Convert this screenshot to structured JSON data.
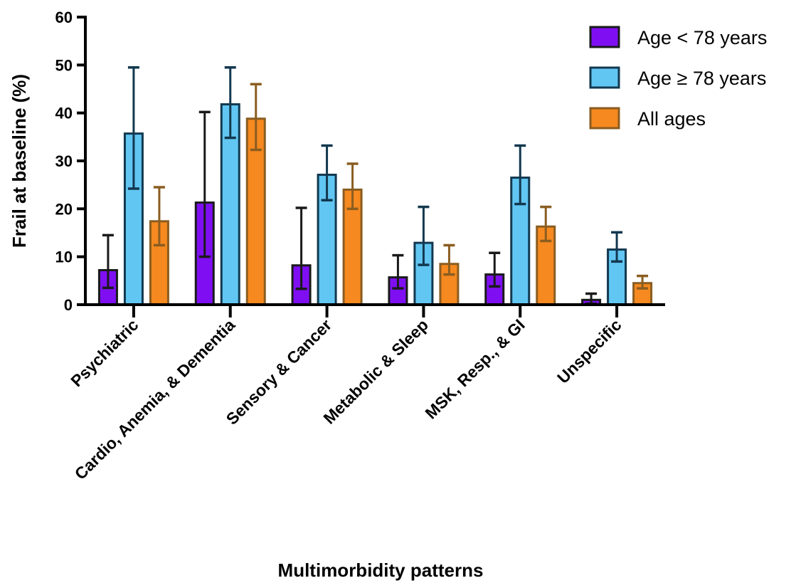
{
  "chart_data": {
    "type": "bar",
    "title": "",
    "xlabel": "Multimorbidity patterns",
    "ylabel": "Frail at baseline (%)",
    "ylim": [
      0,
      60
    ],
    "yticks": [
      0,
      10,
      20,
      30,
      40,
      50,
      60
    ],
    "grid": false,
    "legend_position": "top-right",
    "categories": [
      "Psychiatric",
      "Cardio, Anemia, & Dementia",
      "Sensory & Cancer",
      "Metabolic & Sleep",
      "MSK, Resp., & GI",
      "Unspecific"
    ],
    "series": [
      {
        "name": "Age < 78 years",
        "color": "#7f0ff2",
        "edge": "#1a1a1a",
        "values": [
          7.2,
          21.3,
          8.2,
          5.7,
          6.3,
          1.0
        ],
        "error_low": [
          3.5,
          10.0,
          3.3,
          3.4,
          3.8,
          0.2
        ],
        "error_high": [
          14.5,
          40.2,
          20.2,
          10.3,
          10.8,
          2.3
        ]
      },
      {
        "name": "Age ≥ 78 years",
        "color": "#62c6f2",
        "edge": "#12384f",
        "values": [
          35.7,
          41.8,
          27.1,
          12.9,
          26.5,
          11.5
        ],
        "error_low": [
          24.2,
          34.8,
          21.8,
          8.3,
          21.0,
          9.0
        ],
        "error_high": [
          49.5,
          49.5,
          33.2,
          20.4,
          33.2,
          15.1
        ]
      },
      {
        "name": "All ages",
        "color": "#f6891f",
        "edge": "#8a5d21",
        "values": [
          17.4,
          38.8,
          24.0,
          8.5,
          16.3,
          4.5
        ],
        "error_low": [
          12.4,
          32.3,
          20.0,
          6.3,
          13.3,
          3.4
        ],
        "error_high": [
          24.5,
          46.0,
          29.4,
          12.4,
          20.4,
          6.0
        ]
      }
    ]
  }
}
